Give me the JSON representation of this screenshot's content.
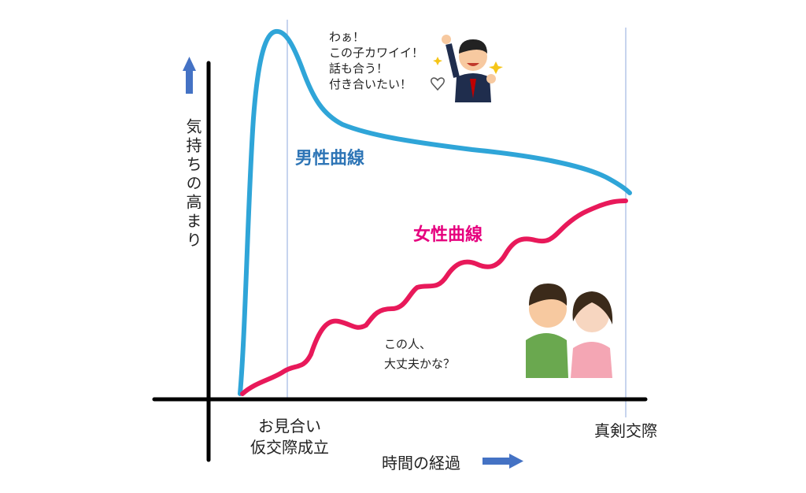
{
  "axes": {
    "y_label": "気持ちの高まり",
    "x_label": "時間の経過"
  },
  "milestones": [
    {
      "lines": [
        "お見合い",
        "仮交際成立"
      ]
    },
    {
      "lines": [
        "真剣交際"
      ]
    }
  ],
  "curves": [
    {
      "label": "男性曲線"
    },
    {
      "label": "女性曲線"
    }
  ],
  "man_speech": [
    "わぁ！",
    "この子カワイイ！",
    "話も合う！",
    "付き合いたい！"
  ],
  "woman_thought": [
    "この人、",
    "大丈夫かな？"
  ]
}
